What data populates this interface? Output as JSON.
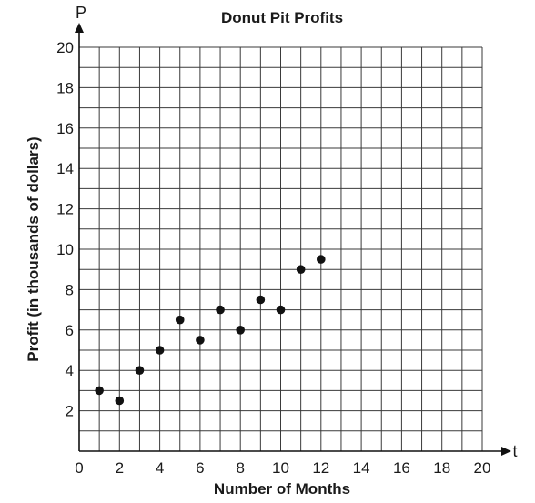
{
  "chart_data": {
    "type": "scatter",
    "title": "Donut Pit Profits",
    "xlabel": "Number of Months",
    "ylabel": "Profit (in thousands of dollars)",
    "x_axis_letter": "t",
    "y_axis_letter": "P",
    "xlim": [
      0,
      20
    ],
    "ylim": [
      0,
      20
    ],
    "x_ticks": [
      0,
      2,
      4,
      6,
      8,
      10,
      12,
      14,
      16,
      18,
      20
    ],
    "y_ticks": [
      2,
      4,
      6,
      8,
      10,
      12,
      14,
      16,
      18,
      20
    ],
    "grid": true,
    "points": [
      {
        "x": 1,
        "y": 3
      },
      {
        "x": 2,
        "y": 2.5
      },
      {
        "x": 3,
        "y": 4
      },
      {
        "x": 4,
        "y": 5
      },
      {
        "x": 5,
        "y": 6.5
      },
      {
        "x": 6,
        "y": 5.5
      },
      {
        "x": 7,
        "y": 7
      },
      {
        "x": 8,
        "y": 6
      },
      {
        "x": 9,
        "y": 7.5
      },
      {
        "x": 10,
        "y": 7
      },
      {
        "x": 11,
        "y": 9
      },
      {
        "x": 12,
        "y": 9.5
      }
    ]
  }
}
